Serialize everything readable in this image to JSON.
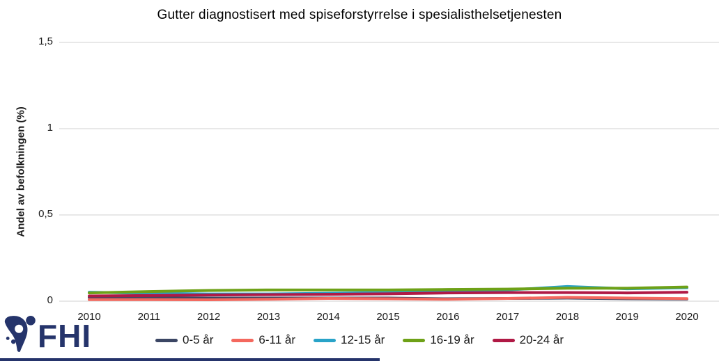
{
  "title": "Gutter diagnostisert med spiseforstyrrelse i spesialisthelsetjenesten",
  "y_axis": {
    "label": "Andel av befolkningen (%)"
  },
  "x_axis": {
    "tick_labels": [
      "2010",
      "2011",
      "2012",
      "2013",
      "2014",
      "2015",
      "2016",
      "2017",
      "2018",
      "2019",
      "2020"
    ]
  },
  "logo": {
    "text": "FHI"
  },
  "colors": {
    "logo": "#25346B",
    "footer_bar": "#25346B",
    "gridline": "#D9D9D9",
    "axis_text": "#1A1A1A"
  },
  "chart_data": {
    "type": "line",
    "title": "Gutter diagnostisert med spiseforstyrrelse i spesialisthelsetjenesten",
    "xlabel": "",
    "ylabel": "Andel av befolkningen (%)",
    "unit": "percent of population",
    "x": [
      2010,
      2011,
      2012,
      2013,
      2014,
      2015,
      2016,
      2017,
      2018,
      2019,
      2020
    ],
    "ylim": [
      0,
      1.5
    ],
    "yticks": [
      0,
      0.5,
      1,
      1.5
    ],
    "ytick_labels": [
      "0",
      "0,5",
      "1",
      "1,5"
    ],
    "grid": "horizontal-only",
    "legend_position": "bottom",
    "series": [
      {
        "name": "0-5 år",
        "color": "#3B4664",
        "values": [
          0.022,
          0.02,
          0.018,
          0.018,
          0.018,
          0.018,
          0.014,
          0.016,
          0.018,
          0.014,
          0.012
        ]
      },
      {
        "name": "6-11 år",
        "color": "#F4685E",
        "values": [
          0.009,
          0.009,
          0.008,
          0.011,
          0.016,
          0.014,
          0.011,
          0.016,
          0.022,
          0.018,
          0.015
        ]
      },
      {
        "name": "12-15 år",
        "color": "#29A3C8",
        "values": [
          0.052,
          0.046,
          0.042,
          0.042,
          0.046,
          0.05,
          0.055,
          0.065,
          0.085,
          0.072,
          0.078
        ]
      },
      {
        "name": "16-19 år",
        "color": "#6EA117",
        "values": [
          0.048,
          0.056,
          0.062,
          0.065,
          0.065,
          0.065,
          0.068,
          0.07,
          0.075,
          0.075,
          0.082
        ]
      },
      {
        "name": "20-24 år",
        "color": "#B01945",
        "values": [
          0.03,
          0.033,
          0.036,
          0.038,
          0.04,
          0.043,
          0.048,
          0.05,
          0.05,
          0.048,
          0.052
        ]
      }
    ]
  }
}
